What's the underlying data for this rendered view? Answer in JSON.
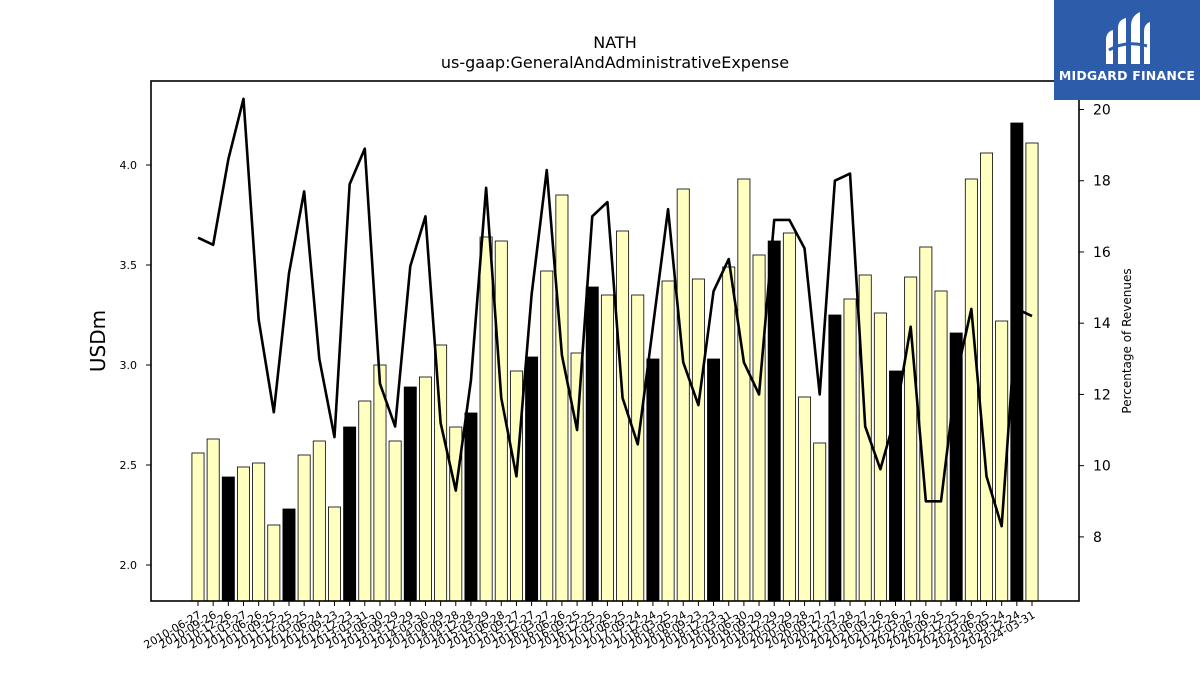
{
  "chart_data": {
    "type": "bar",
    "title": "NATH",
    "subtitle": "us-gaap:GeneralAndAdministrativeExpense",
    "ylabel": "USDm",
    "y2label": "Percentage of Revenues",
    "ylim": [
      1.82,
      4.42
    ],
    "y2lim": [
      6.2,
      20.8
    ],
    "yticks": [
      2.0,
      2.5,
      3.0,
      3.5,
      4.0
    ],
    "y2ticks": [
      8,
      10,
      12,
      14,
      16,
      18,
      20
    ],
    "grid": false,
    "colors": {
      "bar_default": "#ffffc0",
      "bar_highlight": "#000000",
      "line": "#000000"
    },
    "categories": [
      "2010-06-27",
      "2010-09-26",
      "2010-12-26",
      "2011-03-27",
      "2011-06-26",
      "2011-09-25",
      "2011-12-25",
      "2012-03-25",
      "2012-06-24",
      "2012-09-23",
      "2012-12-23",
      "2013-03-31",
      "2013-06-30",
      "2013-09-29",
      "2013-12-29",
      "2014-03-30",
      "2014-06-29",
      "2014-09-28",
      "2014-12-28",
      "2015-03-29",
      "2015-06-28",
      "2015-09-27",
      "2015-12-27",
      "2016-03-27",
      "2016-06-26",
      "2016-09-25",
      "2016-12-25",
      "2017-03-26",
      "2017-06-25",
      "2017-09-24",
      "2017-12-24",
      "2018-03-25",
      "2018-06-24",
      "2018-09-23",
      "2018-12-23",
      "2019-03-31",
      "2019-06-30",
      "2019-09-29",
      "2019-12-29",
      "2020-03-29",
      "2020-06-28",
      "2020-09-27",
      "2020-12-27",
      "2021-03-28",
      "2021-06-27",
      "2021-09-26",
      "2021-12-26",
      "2022-03-27",
      "2022-06-26",
      "2022-09-25",
      "2022-12-25",
      "2023-03-26",
      "2023-06-25",
      "2023-09-24",
      "2023-12-24",
      "2024-03-31"
    ],
    "xtick_labels": [
      "2010-06-27",
      "2010-09-26",
      "2010-12-26",
      "2011-03-27",
      "2011-06-26",
      "2011-09-25",
      "2011-12-25",
      "2012-03-25",
      "2012-06-24",
      "2012-09-23",
      "2012-12-23",
      "2013-03-31",
      "2013-06-30",
      "2013-09-29",
      "2013-12-29",
      "2014-03-30",
      "2014-06-29",
      "2014-09-28",
      "2014-12-28",
      "2015-03-29",
      "2015-06-28",
      "2015-09-27",
      "2015-12-27",
      "2016-03-27",
      "2016-06-26",
      "2016-09-25",
      "2016-12-25",
      "2017-03-26",
      "2017-06-25",
      "2017-09-24",
      "2017-12-24",
      "2018-03-25",
      "2018-06-24",
      "2018-09-23",
      "2018-12-23",
      "2019-03-31",
      "2019-06-30",
      "2019-09-29",
      "2019-12-29",
      "2020-03-29",
      "2020-06-28",
      "2020-09-27",
      "2020-12-27",
      "2021-03-28",
      "2021-06-27",
      "2021-09-26",
      "2021-12-26",
      "2022-03-27",
      "2022-06-26",
      "2022-09-25",
      "2022-12-25",
      "2023-03-26",
      "2023-06-25",
      "2023-09-24",
      "2023-12-24",
      "2024-03-31"
    ],
    "series": [
      {
        "type": "bar",
        "axis": "left",
        "values": [
          2.56,
          2.63,
          2.44,
          2.49,
          2.51,
          2.2,
          2.28,
          2.55,
          2.62,
          2.29,
          2.69,
          2.82,
          3.0,
          2.62,
          2.89,
          2.94,
          3.1,
          2.69,
          2.76,
          3.64,
          3.62,
          2.97,
          3.04,
          3.47,
          3.85,
          3.06,
          3.39,
          3.35,
          3.67,
          3.35,
          3.03,
          3.42,
          3.88,
          3.43,
          3.03,
          3.49,
          3.93,
          3.55,
          3.62,
          3.66,
          2.84,
          2.61,
          3.25,
          3.33,
          3.45,
          3.26,
          2.97,
          3.44,
          3.59,
          3.37,
          3.16,
          3.93,
          4.06,
          3.22,
          4.21,
          4.11
        ],
        "highlight_indices": [
          2,
          6,
          10,
          14,
          18,
          22,
          26,
          30,
          34,
          38,
          42,
          46,
          50,
          54
        ]
      },
      {
        "type": "line",
        "axis": "right",
        "values": [
          16.4,
          16.2,
          18.6,
          20.3,
          14.1,
          11.5,
          15.4,
          17.7,
          13.0,
          10.8,
          17.9,
          18.9,
          12.3,
          11.1,
          15.6,
          17.0,
          11.2,
          9.3,
          12.4,
          17.8,
          11.9,
          9.7,
          14.8,
          18.3,
          13.1,
          11.0,
          17.0,
          17.4,
          11.9,
          10.6,
          13.9,
          17.2,
          12.9,
          11.7,
          14.9,
          15.8,
          12.9,
          12.0,
          16.9,
          16.9,
          16.1,
          12.0,
          18.0,
          18.2,
          11.1,
          9.9,
          11.4,
          13.9,
          9.0,
          9.0,
          12.5,
          14.4,
          9.7,
          8.3,
          14.4,
          14.2
        ]
      }
    ]
  },
  "logo": {
    "text": "MIDGARD FINANCE",
    "color": "#2d5caa"
  }
}
